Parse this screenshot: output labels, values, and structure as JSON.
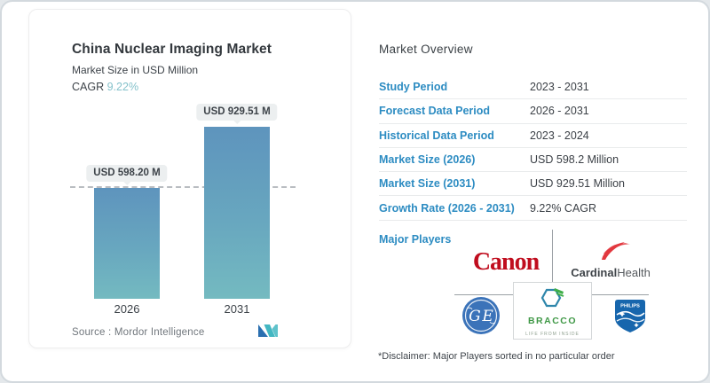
{
  "chart_card": {
    "title": "China Nuclear Imaging Market",
    "subtitle": "Market Size in USD Million",
    "cagr_label": "CAGR",
    "cagr_value": "9.22%",
    "source_label": "Source :  Mordor Intelligence",
    "bars": [
      {
        "year": "2026",
        "tooltip": "USD 598.20 M"
      },
      {
        "year": "2031",
        "tooltip": "USD 929.51 M"
      }
    ],
    "colors": {
      "bar_top": "#5e94bd",
      "bar_bottom": "#74bac0",
      "cagr_accent": "#85c2cb",
      "label_blue": "#2d8cc2"
    }
  },
  "chart_data": {
    "type": "bar",
    "title": "China Nuclear Imaging Market",
    "ylabel": "Market Size in USD Million",
    "categories": [
      "2026",
      "2031"
    ],
    "values": [
      598.2,
      929.51
    ],
    "data_labels": [
      "USD 598.20 M",
      "USD 929.51 M"
    ],
    "cagr": "9.22%",
    "ylim": [
      0,
      980
    ],
    "grid": "off",
    "reference_line": {
      "at_value": 598.2,
      "style": "dashed"
    }
  },
  "overview": {
    "heading": "Market Overview",
    "rows": [
      {
        "label": "Study Period",
        "value": "2023 - 2031"
      },
      {
        "label": "Forecast Data Period",
        "value": "2026 - 2031"
      },
      {
        "label": "Historical Data Period",
        "value": "2023 - 2024"
      },
      {
        "label": "Market Size (2026)",
        "value": "USD 598.2 Million"
      },
      {
        "label": "Market Size (2031)",
        "value": "USD 929.51 Million"
      },
      {
        "label": "Growth Rate (2026 - 2031)",
        "value": "9.22% CAGR"
      }
    ],
    "major_players_label": "Major Players",
    "disclaimer": "*Disclaimer: Major Players sorted in no particular order"
  },
  "logos": {
    "canon": "Canon",
    "cardinal_bold": "Cardinal",
    "cardinal_light": "Health",
    "ge": "GE",
    "bracco": "BRACCO",
    "bracco_tagline": "LIFE FROM INSIDE",
    "philips": "PHILIPS"
  }
}
